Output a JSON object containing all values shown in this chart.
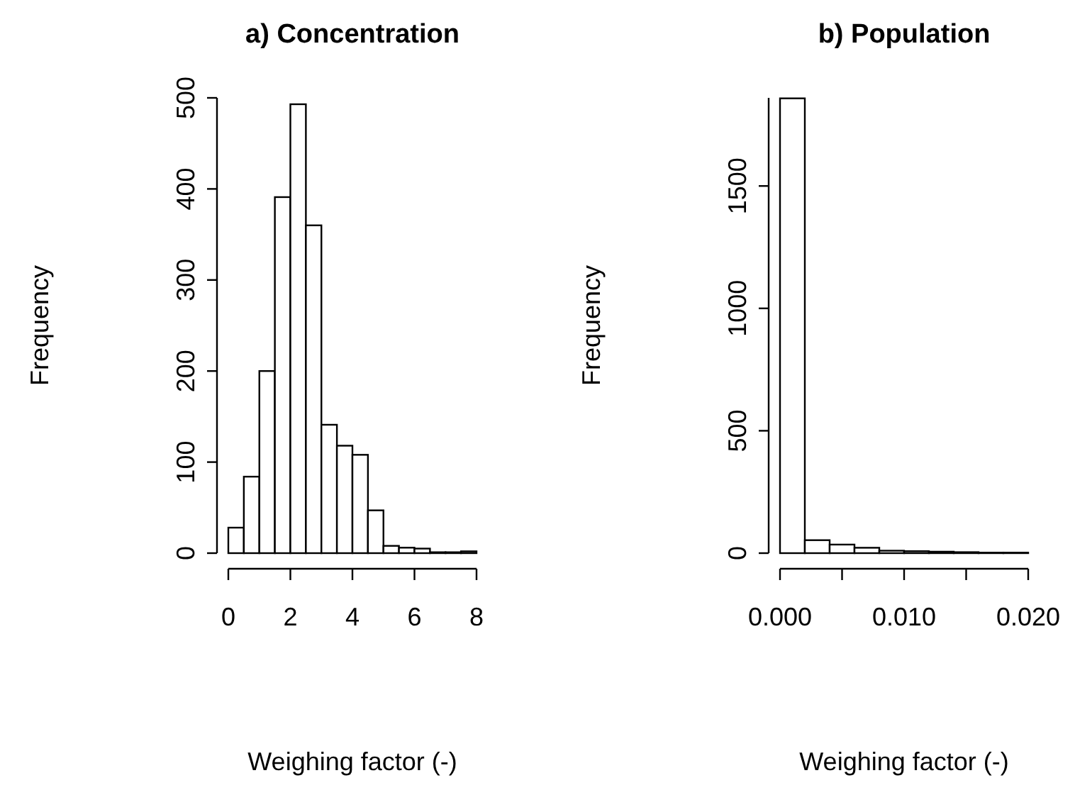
{
  "chart_data": [
    {
      "type": "histogram",
      "title": "a) Concentration",
      "xlabel": "Weighing factor (-)",
      "ylabel": "Frequency",
      "color": "#ffffff",
      "bins": [
        0,
        0.5,
        1,
        1.5,
        2,
        2.5,
        3,
        3.5,
        4,
        4.5,
        5,
        5.5,
        6,
        6.5,
        7,
        7.5,
        8
      ],
      "values": [
        28,
        84,
        200,
        391,
        493,
        360,
        141,
        118,
        108,
        47,
        8,
        6,
        5,
        1,
        1,
        2
      ],
      "xlim": [
        0,
        8
      ],
      "xticks": [
        0,
        2,
        4,
        6,
        8
      ],
      "ylim": [
        0,
        500
      ],
      "yticks": [
        0,
        100,
        200,
        300,
        400,
        500
      ],
      "grid": false
    },
    {
      "type": "histogram",
      "title": "b) Population",
      "xlabel": "Weighing factor (-)",
      "ylabel": "Frequency",
      "color": "#ffffff",
      "bins": [
        0,
        0.002,
        0.004,
        0.006,
        0.008,
        0.01,
        0.012,
        0.014,
        0.016,
        0.018,
        0.02
      ],
      "values": [
        1858,
        53,
        35,
        22,
        10,
        8,
        6,
        4,
        2,
        2
      ],
      "xlim": [
        0,
        0.02
      ],
      "xticks": [
        {
          "value": 0,
          "label": "0.000"
        },
        {
          "value": 0.005,
          "label": null
        },
        {
          "value": 0.01,
          "label": "0.010"
        },
        {
          "value": 0.015,
          "label": null
        },
        {
          "value": 0.02,
          "label": "0.020"
        }
      ],
      "ylim": [
        0,
        1860
      ],
      "yticks": [
        0,
        500,
        1000,
        1500
      ],
      "grid": false
    }
  ]
}
